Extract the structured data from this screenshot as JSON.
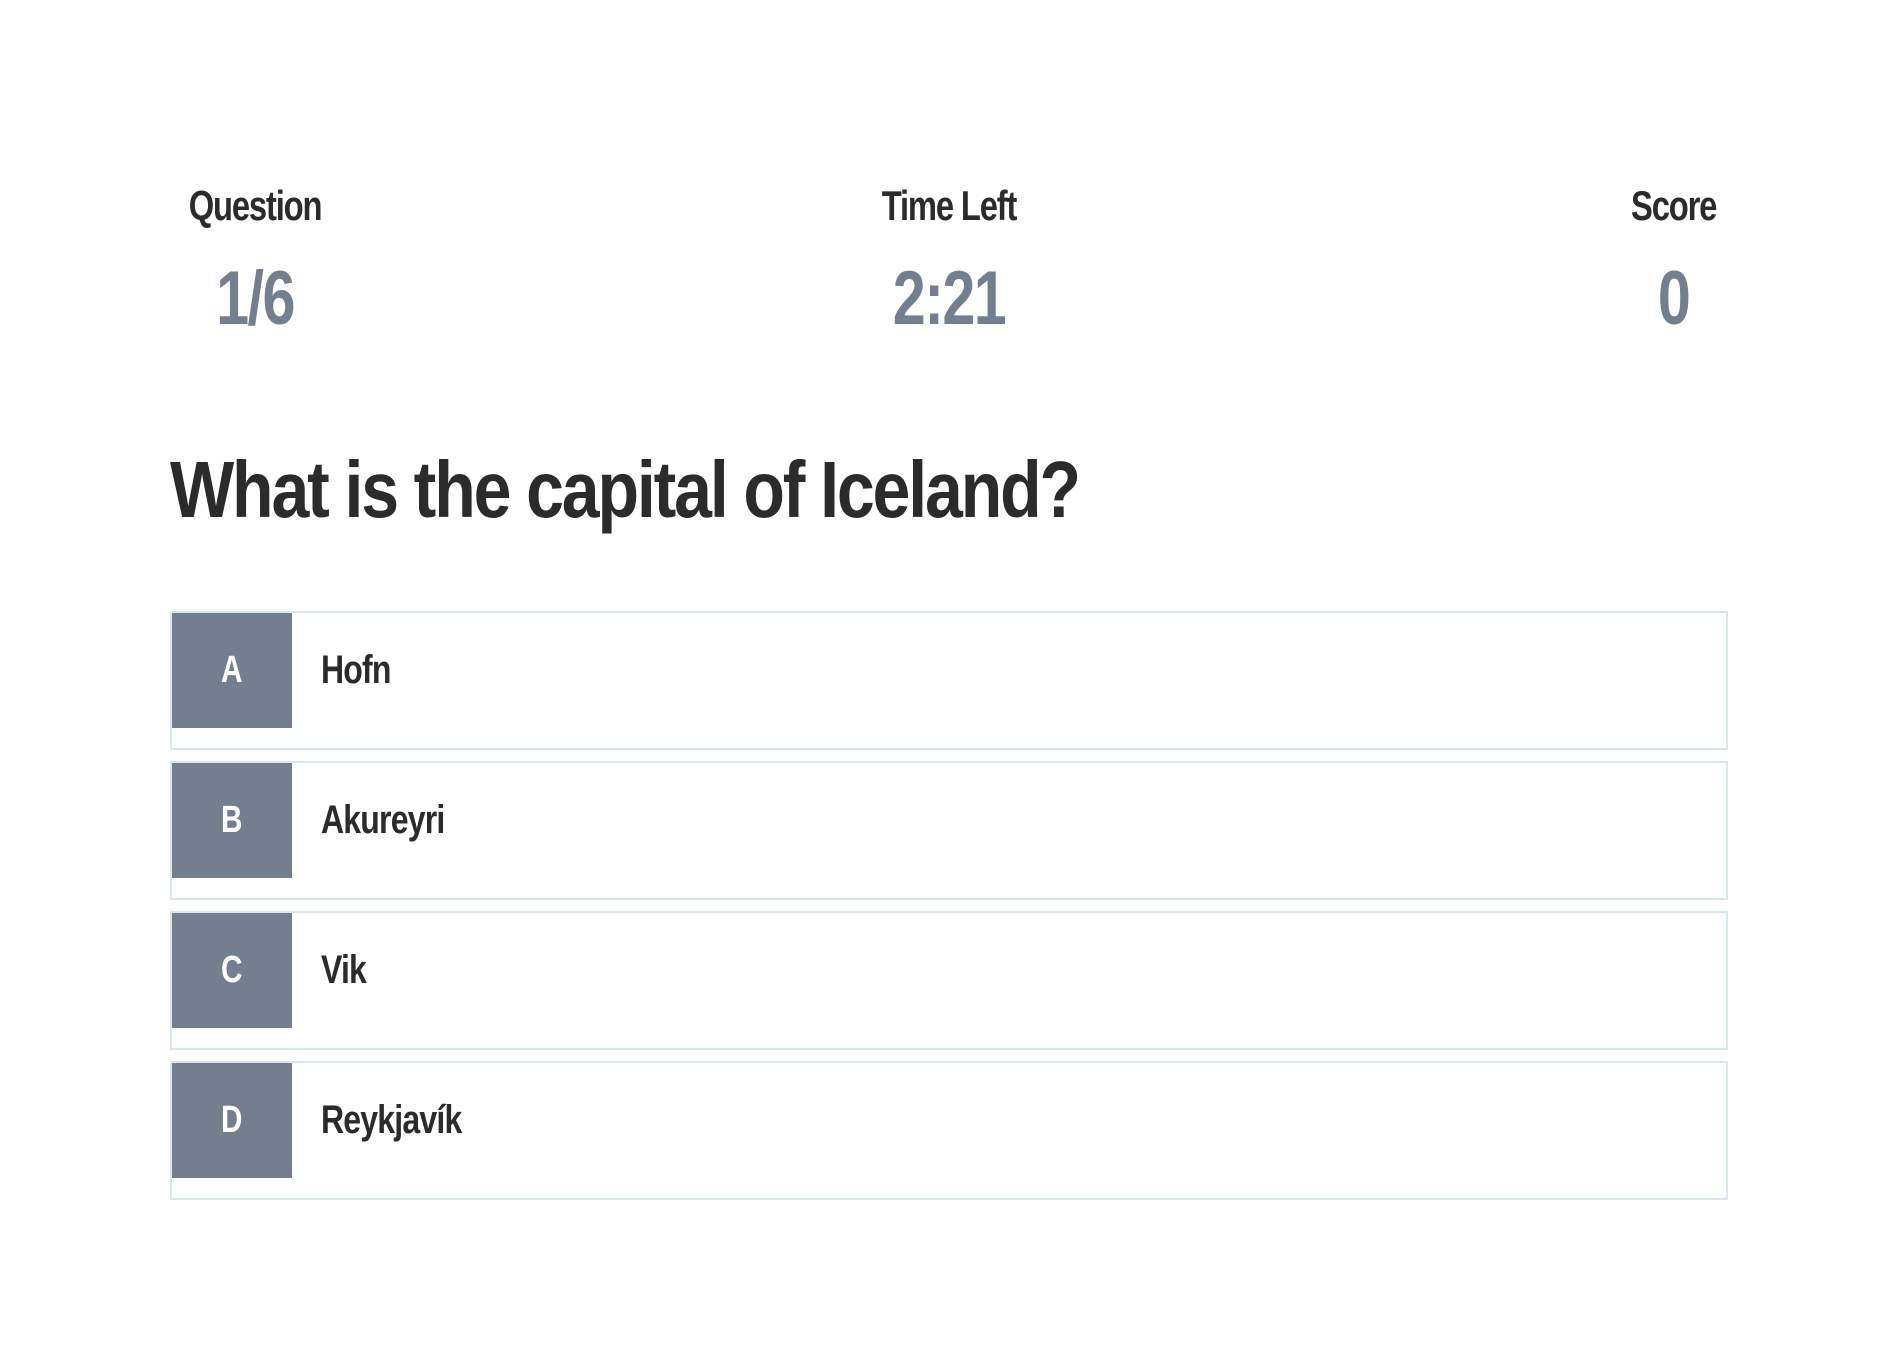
{
  "stats": {
    "question_label": "Question",
    "question_value": "1/6",
    "time_label": "Time Left",
    "time_value": "2:21",
    "score_label": "Score",
    "score_value": "0"
  },
  "question": {
    "text": "What is the capital of Iceland?"
  },
  "answers": [
    {
      "letter": "A",
      "text": "Hofn"
    },
    {
      "letter": "B",
      "text": "Akureyri"
    },
    {
      "letter": "C",
      "text": "Vik"
    },
    {
      "letter": "D",
      "text": "Reykjavík"
    }
  ],
  "colors": {
    "accent": "#737f8f",
    "text": "#2b2b2b",
    "border": "#dbe6f3",
    "background": "#ffffff"
  }
}
